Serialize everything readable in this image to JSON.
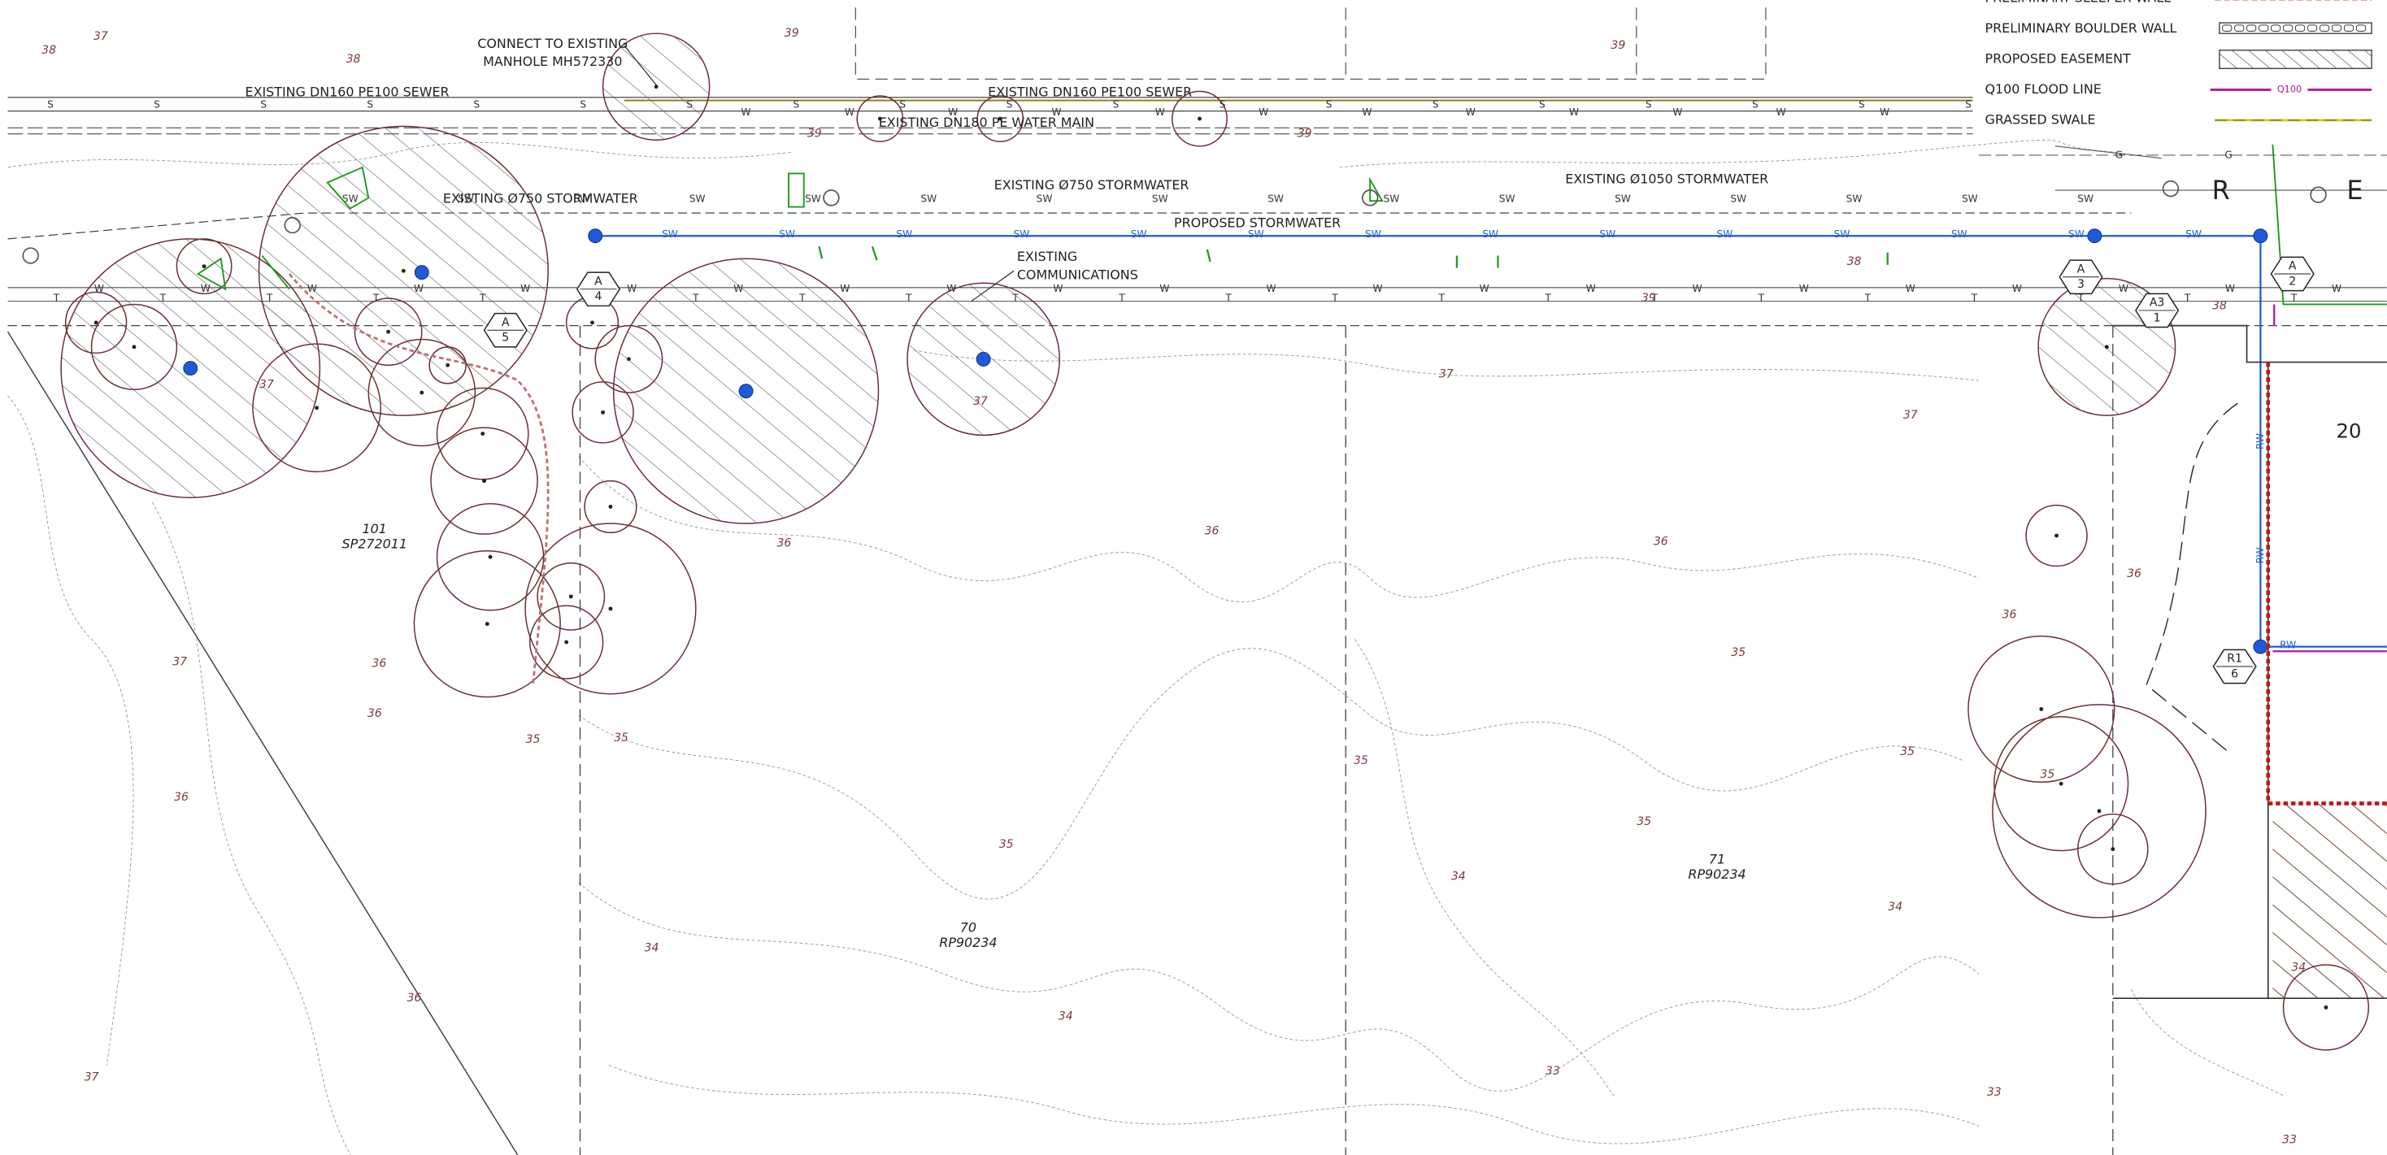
{
  "legend": {
    "items": [
      {
        "label": "PRELIMINARY SLEEPER WALL"
      },
      {
        "label": "PRELIMINARY BOULDER WALL"
      },
      {
        "label": "PROPOSED EASEMENT"
      },
      {
        "label": "Q100 FLOOD LINE",
        "symbol_label": "Q100"
      },
      {
        "label": "GRASSED SWALE"
      }
    ]
  },
  "annotations": [
    {
      "lines": [
        "CONNECT TO EXISTING",
        "MANHOLE MH572330"
      ]
    },
    {
      "lines": [
        "EXISTING DN160 PE100 SEWER"
      ]
    },
    {
      "lines": [
        "EXISTING DN160 PE100 SEWER"
      ]
    },
    {
      "lines": [
        "EXISTING DN180 PE WATER MAIN"
      ]
    },
    {
      "lines": [
        "EXISTING Ø750 STORMWATER"
      ]
    },
    {
      "lines": [
        "EXISTING Ø750 STORMWATER"
      ]
    },
    {
      "lines": [
        "EXISTING Ø1050 STORMWATER"
      ]
    },
    {
      "lines": [
        "PROPOSED STORMWATER"
      ]
    },
    {
      "lines": [
        "EXISTING",
        "COMMUNICATIONS"
      ]
    }
  ],
  "lots": [
    {
      "number": "101",
      "plan": "SP272011"
    },
    {
      "number": "70",
      "plan": "RP90234"
    },
    {
      "number": "71",
      "plan": "RP90234"
    },
    {
      "number": "20"
    }
  ],
  "markers": [
    {
      "top": "A",
      "bottom": "5"
    },
    {
      "top": "A",
      "bottom": "4"
    },
    {
      "top": "A",
      "bottom": "3"
    },
    {
      "top": "A",
      "bottom": "2"
    },
    {
      "top": "A3",
      "bottom": "1"
    },
    {
      "top": "R1",
      "bottom": "6"
    }
  ],
  "contour_labels": [
    37,
    38,
    38,
    39,
    39,
    39,
    39,
    38,
    38,
    39,
    37,
    37,
    37,
    37,
    36,
    36,
    36,
    36,
    36,
    35,
    37,
    36,
    36,
    36,
    35,
    35,
    35,
    35,
    35,
    35,
    35,
    34,
    34,
    34,
    34,
    36,
    37,
    33,
    33,
    33,
    34
  ],
  "line_codes": {
    "sewer": "S",
    "water": "W",
    "stormwater": "SW",
    "telecom": "T",
    "gas": "G",
    "rainwater": "RW"
  },
  "street_letters": [
    "R",
    "E"
  ]
}
